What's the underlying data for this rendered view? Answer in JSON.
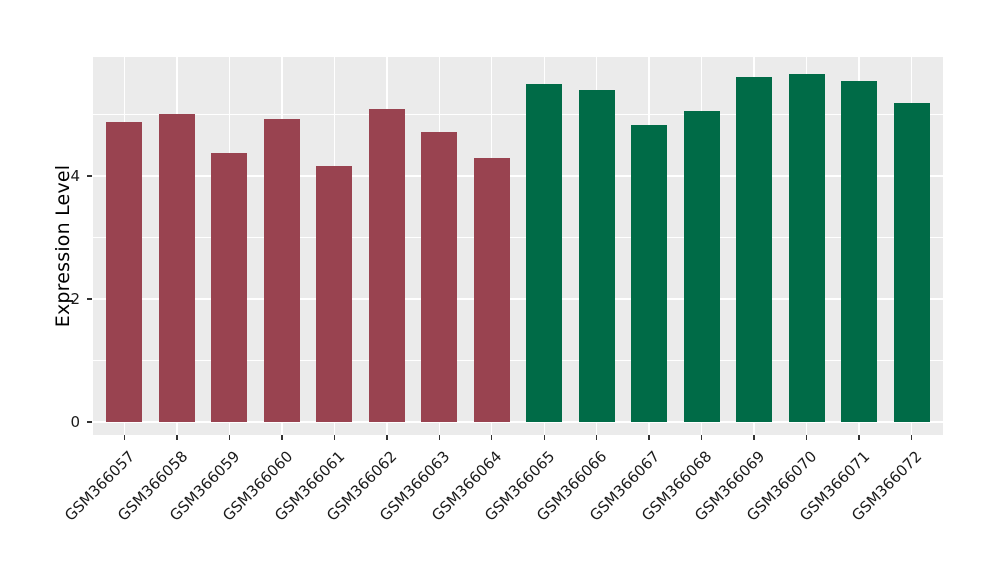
{
  "chart_data": {
    "type": "bar",
    "title": "",
    "xlabel": "",
    "ylabel": "Expression Level",
    "categories": [
      "GSM366057",
      "GSM366058",
      "GSM366059",
      "GSM366060",
      "GSM366061",
      "GSM366062",
      "GSM366063",
      "GSM366064",
      "GSM366065",
      "GSM366066",
      "GSM366067",
      "GSM366068",
      "GSM366069",
      "GSM366070",
      "GSM366071",
      "GSM366072"
    ],
    "values": [
      4.88,
      5.01,
      4.37,
      4.92,
      4.16,
      5.09,
      4.72,
      4.29,
      5.5,
      5.4,
      4.83,
      5.06,
      5.61,
      5.66,
      5.55,
      5.19
    ],
    "bar_colors": [
      "#994350",
      "#994350",
      "#994350",
      "#994350",
      "#994350",
      "#994350",
      "#994350",
      "#994350",
      "#006B47",
      "#006B47",
      "#006B47",
      "#006B47",
      "#006B47",
      "#006B47",
      "#006B47",
      "#006B47"
    ],
    "yticks": [
      "0",
      "2",
      "4"
    ],
    "ytick_values": [
      0,
      2,
      4
    ],
    "minor_ytick_values": [
      1,
      3,
      5
    ],
    "ylim": [
      0,
      5.93
    ],
    "grid": true,
    "legend_position": "none",
    "x_tick_rotation": 45,
    "panel_background": "#EBEBEB",
    "gridline_color": "#FFFFFF"
  }
}
